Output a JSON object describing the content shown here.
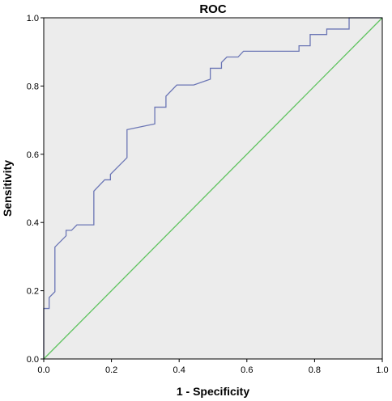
{
  "chart_data": {
    "type": "line",
    "title": "ROC",
    "xlabel": "1 - Specificity",
    "ylabel": "Sensitivity",
    "xlim": [
      0.0,
      1.0
    ],
    "ylim": [
      0.0,
      1.0
    ],
    "xticks": [
      "0.0",
      "0.2",
      "0.4",
      "0.6",
      "0.8",
      "1.0"
    ],
    "yticks": [
      "0.0",
      "0.2",
      "0.4",
      "0.6",
      "0.8",
      "1.0"
    ],
    "grid": false,
    "background_color": "#ececec",
    "series": [
      {
        "color": "#6b76b5",
        "points": [
          [
            0.0,
            0.0
          ],
          [
            0.0,
            0.148
          ],
          [
            0.016,
            0.148
          ],
          [
            0.016,
            0.18
          ],
          [
            0.033,
            0.197
          ],
          [
            0.033,
            0.328
          ],
          [
            0.066,
            0.361
          ],
          [
            0.066,
            0.377
          ],
          [
            0.082,
            0.377
          ],
          [
            0.098,
            0.393
          ],
          [
            0.148,
            0.393
          ],
          [
            0.148,
            0.492
          ],
          [
            0.18,
            0.525
          ],
          [
            0.197,
            0.525
          ],
          [
            0.197,
            0.541
          ],
          [
            0.246,
            0.59
          ],
          [
            0.246,
            0.672
          ],
          [
            0.328,
            0.689
          ],
          [
            0.328,
            0.738
          ],
          [
            0.361,
            0.738
          ],
          [
            0.361,
            0.77
          ],
          [
            0.393,
            0.803
          ],
          [
            0.443,
            0.803
          ],
          [
            0.492,
            0.82
          ],
          [
            0.492,
            0.852
          ],
          [
            0.525,
            0.852
          ],
          [
            0.525,
            0.869
          ],
          [
            0.541,
            0.885
          ],
          [
            0.574,
            0.885
          ],
          [
            0.59,
            0.902
          ],
          [
            0.754,
            0.902
          ],
          [
            0.754,
            0.918
          ],
          [
            0.787,
            0.918
          ],
          [
            0.787,
            0.951
          ],
          [
            0.836,
            0.951
          ],
          [
            0.836,
            0.967
          ],
          [
            0.902,
            0.967
          ],
          [
            0.902,
            1.0
          ],
          [
            1.0,
            1.0
          ]
        ]
      },
      {
        "color": "#5fc35f",
        "points": [
          [
            0.0,
            0.0
          ],
          [
            1.0,
            1.0
          ]
        ]
      }
    ]
  }
}
